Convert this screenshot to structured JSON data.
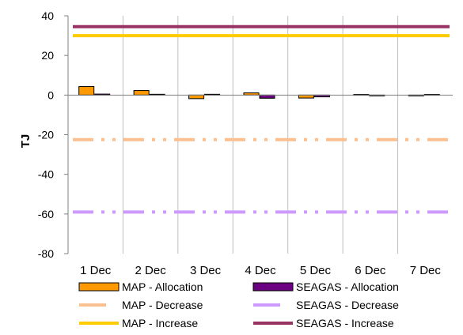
{
  "chart_data": {
    "type": "bar",
    "categories": [
      "1 Dec",
      "2 Dec",
      "3 Dec",
      "4 Dec",
      "5 Dec",
      "6 Dec",
      "7 Dec"
    ],
    "ylabel": "TJ",
    "xlabel": "",
    "ylim": [
      -80,
      40
    ],
    "yticks": [
      40,
      20,
      0,
      -20,
      -40,
      -60,
      -80
    ],
    "grid": "vertical category separators",
    "legend_position": "bottom",
    "series": [
      {
        "name": "MAP - Allocation",
        "kind": "bar",
        "color": "#FF9900",
        "stroke": "#000000",
        "values": [
          4.3,
          2.3,
          -1.8,
          1.1,
          -1.5,
          0.3,
          -0.4
        ]
      },
      {
        "name": "SEAGAS - Allocation",
        "kind": "bar",
        "color": "#6B0080",
        "stroke": "#000000",
        "values": [
          0.5,
          0.4,
          0.4,
          -1.6,
          -0.9,
          -0.2,
          0.3
        ]
      },
      {
        "name": "MAP - Decrease",
        "kind": "line",
        "style": "dash-dot",
        "color": "#FAC090",
        "values": [
          -22.5,
          -22.5,
          -22.5,
          -22.5,
          -22.5,
          -22.5,
          -22.5
        ]
      },
      {
        "name": "SEAGAS - Decrease",
        "kind": "line",
        "style": "dash-dot",
        "color": "#CC99FF",
        "values": [
          -59,
          -59,
          -59,
          -59,
          -59,
          -59,
          -59
        ]
      },
      {
        "name": "MAP - Increase",
        "kind": "line",
        "style": "solid",
        "color": "#FFCC00",
        "values": [
          30,
          30,
          30,
          30,
          30,
          30,
          30
        ]
      },
      {
        "name": "SEAGAS - Increase",
        "kind": "line",
        "style": "solid",
        "color": "#993366",
        "values": [
          34.5,
          34.5,
          34.5,
          34.5,
          34.5,
          34.5,
          34.5
        ]
      }
    ]
  }
}
